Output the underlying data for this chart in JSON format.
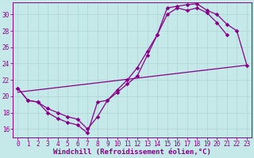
{
  "xlabel": "Windchill (Refroidissement éolien,°C)",
  "xlim": [
    -0.5,
    23.5
  ],
  "ylim": [
    15.0,
    31.5
  ],
  "xticks": [
    0,
    1,
    2,
    3,
    4,
    5,
    6,
    7,
    8,
    9,
    10,
    11,
    12,
    13,
    14,
    15,
    16,
    17,
    18,
    19,
    20,
    21,
    22,
    23
  ],
  "yticks": [
    16,
    18,
    20,
    22,
    24,
    26,
    28,
    30
  ],
  "bg_color": "#c5e8e8",
  "line_color": "#880088",
  "grid_color": "#b0d8d8",
  "curve1_x": [
    0,
    1,
    2,
    3,
    4,
    5,
    6,
    7,
    8,
    9,
    10,
    11,
    12,
    13,
    14,
    15,
    16,
    17,
    18,
    19,
    20,
    21
  ],
  "curve1_y": [
    21.0,
    19.5,
    19.3,
    18.0,
    17.3,
    16.8,
    16.5,
    15.5,
    19.3,
    19.5,
    20.5,
    21.5,
    22.5,
    25.0,
    27.5,
    30.0,
    30.8,
    30.5,
    30.8,
    30.2,
    29.0,
    27.5
  ],
  "curve2_x": [
    0,
    1,
    2,
    3,
    4,
    5,
    6,
    7,
    8,
    9,
    10,
    11,
    12,
    13,
    14,
    15,
    16,
    17,
    18,
    19,
    20,
    21,
    22,
    23
  ],
  "curve2_y": [
    21.0,
    19.5,
    19.3,
    18.5,
    18.0,
    17.5,
    17.2,
    16.0,
    17.5,
    19.5,
    20.8,
    22.0,
    23.5,
    25.5,
    27.5,
    30.8,
    31.0,
    31.2,
    31.3,
    30.5,
    30.0,
    28.8,
    28.0,
    23.8
  ],
  "refline_x": [
    0,
    23
  ],
  "refline_y": [
    20.5,
    23.8
  ],
  "marker_size": 2.8,
  "linewidth": 0.9,
  "tick_fontsize": 5.5,
  "xlabel_fontsize": 6.5
}
